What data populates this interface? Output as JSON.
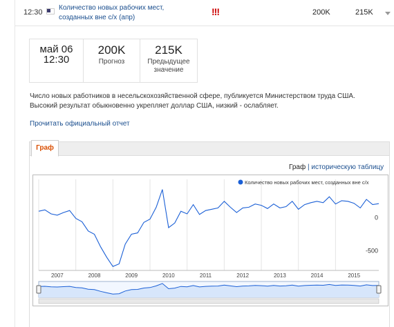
{
  "event": {
    "time": "12:30",
    "flag_icon": "us-flag-icon",
    "title": "Количество новых рабочих мест, созданных вне с/х (апр)",
    "importance": "!!!",
    "forecast": "200K",
    "previous": "215K"
  },
  "stats": {
    "date": "май 06",
    "time": "12:30",
    "forecast_value": "200K",
    "forecast_label": "Прогноз",
    "previous_value": "215K",
    "previous_label_line1": "Предыдущее",
    "previous_label_line2": "значение"
  },
  "description": "Число новых работников в несельскохозяйственной сфере, публикуется Министерством труда США. Высокий результат обыкновенно укрепляет доллар США, низкий - ослабляет.",
  "official_report_link": "Прочитать официальный отчет",
  "tabs": [
    {
      "label": "Граф"
    }
  ],
  "view_links": {
    "graph": "Граф",
    "separator": " | ",
    "table": "историческую таблицу"
  },
  "colors": {
    "link": "#1a4e8e",
    "series": "#1a5fd6",
    "active_tab": "#d94e00",
    "importance": "#cc0000"
  },
  "chart_data": {
    "type": "line",
    "series": [
      {
        "name": "Количество новых рабочих мест, созданных вне с/х",
        "x": [
          "2007-01",
          "2007-03",
          "2007-05",
          "2007-07",
          "2007-09",
          "2007-11",
          "2008-01",
          "2008-03",
          "2008-05",
          "2008-07",
          "2008-09",
          "2008-11",
          "2009-01",
          "2009-03",
          "2009-05",
          "2009-07",
          "2009-09",
          "2009-11",
          "2010-01",
          "2010-03",
          "2010-05",
          "2010-07",
          "2010-09",
          "2010-11",
          "2011-01",
          "2011-03",
          "2011-05",
          "2011-07",
          "2011-09",
          "2011-11",
          "2012-01",
          "2012-03",
          "2012-05",
          "2012-07",
          "2012-09",
          "2012-11",
          "2013-01",
          "2013-03",
          "2013-05",
          "2013-07",
          "2013-09",
          "2013-11",
          "2014-01",
          "2014-03",
          "2014-05",
          "2014-07",
          "2014-09",
          "2014-11",
          "2015-01",
          "2015-03",
          "2015-05",
          "2015-07",
          "2015-09",
          "2015-11",
          "2016-01",
          "2016-03"
        ],
        "values": [
          100,
          120,
          60,
          40,
          80,
          110,
          -10,
          -60,
          -200,
          -250,
          -440,
          -600,
          -740,
          -700,
          -400,
          -250,
          -230,
          -70,
          -20,
          160,
          430,
          -150,
          -80,
          100,
          60,
          200,
          50,
          110,
          130,
          150,
          250,
          160,
          80,
          150,
          160,
          210,
          190,
          140,
          210,
          150,
          170,
          250,
          130,
          200,
          230,
          250,
          230,
          320,
          210,
          260,
          250,
          220,
          150,
          280,
          200,
          215
        ]
      }
    ],
    "x_tick_labels": [
      "2007",
      "2008",
      "2009",
      "2010",
      "2011",
      "2012",
      "2013",
      "2014",
      "2015"
    ],
    "y_tick_labels": [
      "0",
      "-500"
    ],
    "ylim": [
      -800,
      500
    ],
    "xlim": [
      "2007-01",
      "2016-03"
    ],
    "grid": true,
    "legend_position": "top-right",
    "navigator": true
  }
}
